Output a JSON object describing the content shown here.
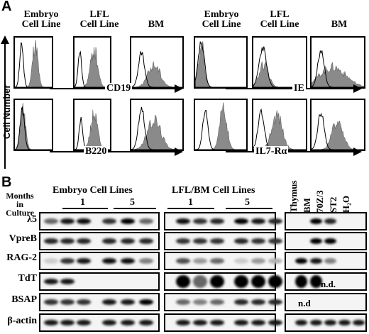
{
  "panel_a": {
    "letter": "A",
    "y_axis_label": "Cell Number",
    "left_group": {
      "headers": [
        "Embryo\nCell Line",
        "LFL\nCell Line",
        "BM"
      ],
      "markers": [
        "CD19",
        "B220"
      ]
    },
    "right_group": {
      "headers": [
        "Embryo\nCell Line",
        "LFL\nCell Line",
        "BM"
      ],
      "markers": [
        "IE",
        "IL7-Rα"
      ]
    }
  },
  "panel_b": {
    "letter": "B",
    "months_label": "Months\nin Culture",
    "group1": {
      "title": "Embryo Cell Lines",
      "months": [
        "1",
        "5"
      ]
    },
    "group2": {
      "title": "LFL/BM Cell Lines",
      "months": [
        "1",
        "5"
      ]
    },
    "controls": [
      "Thymus",
      "BM",
      "70Z/3",
      "ST2",
      "H₂O"
    ],
    "rows": [
      "λ5",
      "VpreB",
      "RAG-2",
      "TdT",
      "BSAP",
      "β-actin"
    ],
    "nd_label": "n.d.",
    "nd_label_bsap": "n.d"
  }
}
